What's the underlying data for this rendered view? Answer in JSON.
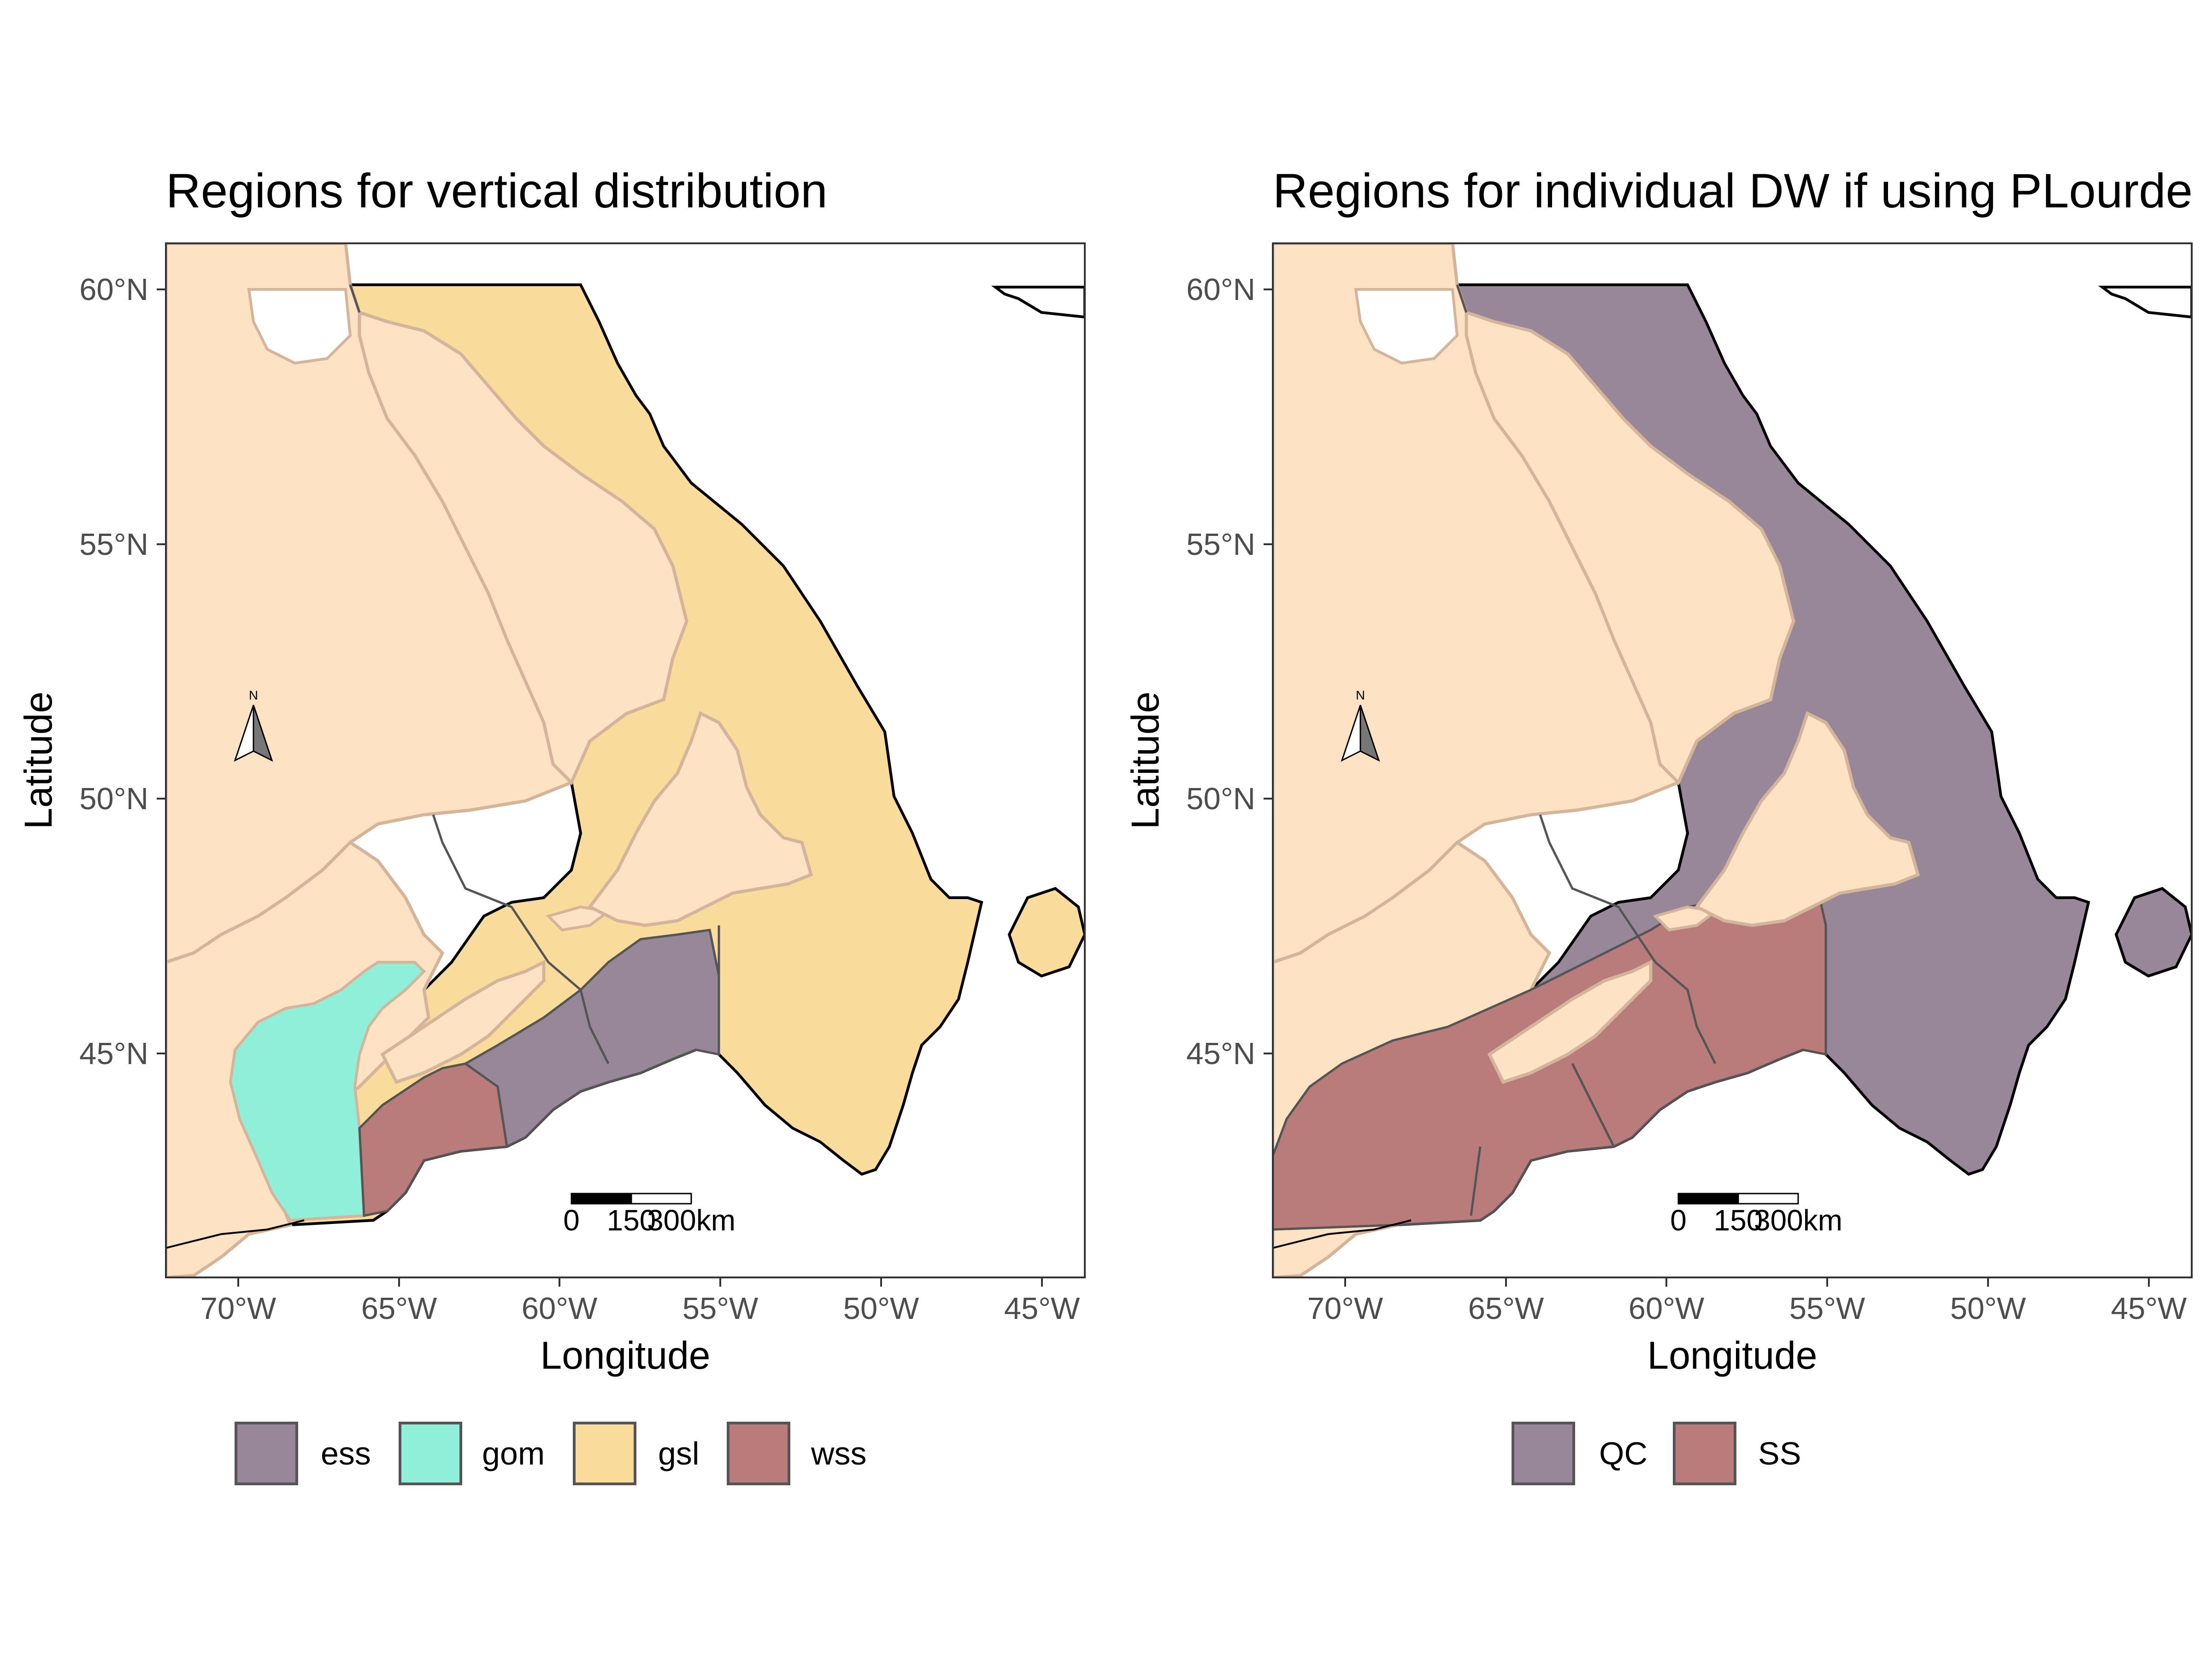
{
  "colors": {
    "land": "#fde3c3",
    "coast": "#d4b59c",
    "ess": "#978799",
    "gom": "#8fefd9",
    "gsl": "#f9db9b",
    "wss": "#b97c7b",
    "QC": "#978799",
    "SS": "#b97c7b"
  },
  "axis_labels": {
    "x": "Longitude",
    "y": "Latitude"
  },
  "lon_ticks": [
    "70°W",
    "65°W",
    "60°W",
    "55°W",
    "50°W",
    "45°W"
  ],
  "lat_ticks": [
    "60°N",
    "55°N",
    "50°N",
    "45°N"
  ],
  "north_arrow_label": "N",
  "scale_bar_labels": [
    "0",
    "150",
    "300km"
  ],
  "panels": [
    {
      "title": "Regions for vertical distribution",
      "legend": [
        {
          "key": "ess",
          "label": "ess"
        },
        {
          "key": "gom",
          "label": "gom"
        },
        {
          "key": "gsl",
          "label": "gsl"
        },
        {
          "key": "wss",
          "label": "wss"
        }
      ]
    },
    {
      "title": "Regions for individual DW if using PLourde",
      "legend": [
        {
          "key": "QC",
          "label": "QC"
        },
        {
          "key": "SS",
          "label": "SS"
        }
      ]
    }
  ]
}
